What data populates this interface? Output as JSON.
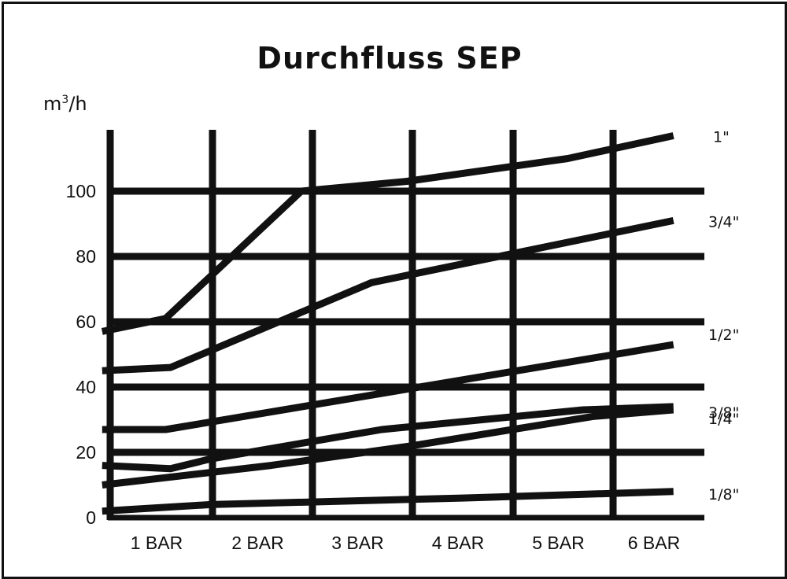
{
  "chart_data": {
    "type": "line",
    "title": "Durchfluss  SEP",
    "ylabel_base": "m",
    "ylabel_sup": "3",
    "ylabel_rest": "/h",
    "categories": [
      "1 BAR",
      "2 BAR",
      "3 BAR",
      "4 BAR",
      "5 BAR",
      "6 BAR"
    ],
    "yticks": [
      "0",
      "20",
      "40",
      "60",
      "80",
      "100"
    ],
    "ylim": [
      0,
      120
    ],
    "grid": true,
    "series": [
      {
        "name": "1\"",
        "x": [
          0.92,
          1.55,
          2.9,
          3.95,
          5.55,
          6.6
        ],
        "y": [
          57,
          61,
          100,
          103,
          110,
          117
        ]
      },
      {
        "name": "3/4\"",
        "x": [
          0.92,
          1.6,
          3.6,
          6.6
        ],
        "y": [
          45,
          46,
          72,
          91
        ]
      },
      {
        "name": "1/2\"",
        "x": [
          0.92,
          1.55,
          6.6
        ],
        "y": [
          27,
          27,
          53
        ]
      },
      {
        "name": "3/8\"",
        "x": [
          0.92,
          1.6,
          2.0,
          3.7,
          5.7,
          6.6
        ],
        "y": [
          16,
          15,
          18,
          27,
          33,
          34
        ]
      },
      {
        "name": "1/4\"",
        "x": [
          0.92,
          2.6,
          4.0,
          5.8,
          6.6
        ],
        "y": [
          10,
          16,
          22,
          31,
          33
        ]
      },
      {
        "name": "1/8\"",
        "x": [
          0.92,
          2.0,
          4.5,
          6.6
        ],
        "y": [
          2,
          4,
          6,
          8
        ]
      }
    ]
  }
}
